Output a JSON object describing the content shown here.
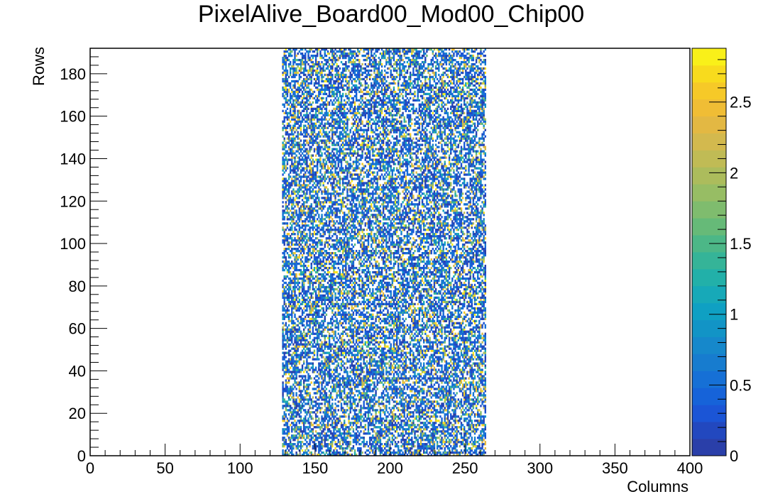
{
  "chart_data": {
    "type": "heatmap",
    "title": "PixelAlive_Board00_Mod00_Chip00",
    "xlabel": "Columns",
    "ylabel": "Rows",
    "xlim": [
      0,
      400
    ],
    "ylim": [
      0,
      192
    ],
    "x_ticks": [
      0,
      50,
      100,
      150,
      200,
      250,
      300,
      350,
      400
    ],
    "x_tick_labels": [
      "0",
      "50",
      "100",
      "150",
      "200",
      "250",
      "300",
      "350",
      "400"
    ],
    "y_ticks": [
      0,
      20,
      40,
      60,
      80,
      100,
      120,
      140,
      160,
      180
    ],
    "y_tick_labels": [
      "0",
      "20",
      "40",
      "60",
      "80",
      "100",
      "120",
      "140",
      "160",
      "180"
    ],
    "filled_columns": [
      128,
      264
    ],
    "filled_rows": [
      0,
      192
    ],
    "z_range": [
      0,
      2.88
    ],
    "z_ticks": [
      0,
      0.5,
      1,
      1.5,
      2,
      2.5
    ],
    "z_tick_labels": [
      "0",
      "0.5",
      "1",
      "1.5",
      "2",
      "2.5"
    ],
    "palette": [
      "#2a3fa9",
      "#2248bf",
      "#1b55d6",
      "#1663d9",
      "#1670d6",
      "#177ccf",
      "#1688cb",
      "#1294c6",
      "#0fa0c3",
      "#17a9b8",
      "#22b0a9",
      "#35b498",
      "#4cb787",
      "#66ba78",
      "#7fbc6e",
      "#97bd64",
      "#acbc5c",
      "#c0bb55",
      "#d3b94e",
      "#e3b843",
      "#f0bd35",
      "#f6c928",
      "#f8db1d",
      "#f9f019"
    ],
    "value_distribution": {
      "empty_fraction": 0.38,
      "low_value_fraction": 0.42,
      "mid_value_fraction": 0.11,
      "high_value_fraction": 0.09
    },
    "grid": false,
    "colorbar": "right"
  }
}
